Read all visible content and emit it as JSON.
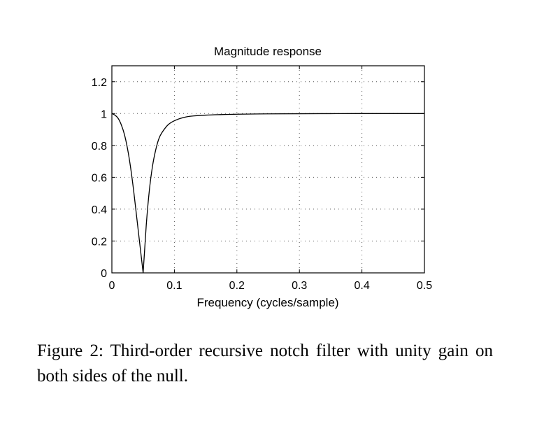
{
  "chart_data": {
    "type": "line",
    "title": "Magnitude response",
    "xlabel": "Frequency (cycles/sample)",
    "ylabel": "",
    "xlim": [
      0,
      0.5
    ],
    "ylim": [
      0,
      1.3
    ],
    "xticks": [
      0,
      0.1,
      0.2,
      0.3,
      0.4,
      0.5
    ],
    "xtick_labels": [
      "0",
      "0.1",
      "0.2",
      "0.3",
      "0.4",
      "0.5"
    ],
    "yticks": [
      0,
      0.2,
      0.4,
      0.6,
      0.8,
      1,
      1.2
    ],
    "ytick_labels": [
      "0",
      "0.2",
      "0.4",
      "0.6",
      "0.8",
      "1",
      "1.2"
    ],
    "grid": true,
    "series": [
      {
        "x": [
          0,
          0.005,
          0.01,
          0.015,
          0.02,
          0.025,
          0.03,
          0.035,
          0.04,
          0.045,
          0.05,
          0.055,
          0.06,
          0.065,
          0.07,
          0.075,
          0.08,
          0.09,
          0.1,
          0.11,
          0.12,
          0.13,
          0.15,
          0.17,
          0.2,
          0.25,
          0.3,
          0.35,
          0.4,
          0.45,
          0.5
        ],
        "y": [
          1.0,
          0.99,
          0.97,
          0.93,
          0.87,
          0.78,
          0.66,
          0.51,
          0.34,
          0.17,
          0.0,
          0.3,
          0.52,
          0.67,
          0.77,
          0.84,
          0.88,
          0.93,
          0.955,
          0.97,
          0.98,
          0.985,
          0.99,
          0.993,
          0.996,
          0.998,
          0.999,
          0.9995,
          1.0,
          1.0,
          1.0
        ],
        "color": "#000000"
      }
    ]
  },
  "caption": "Figure 2:  Third-order recursive notch filter with unity gain on both sides of the null."
}
